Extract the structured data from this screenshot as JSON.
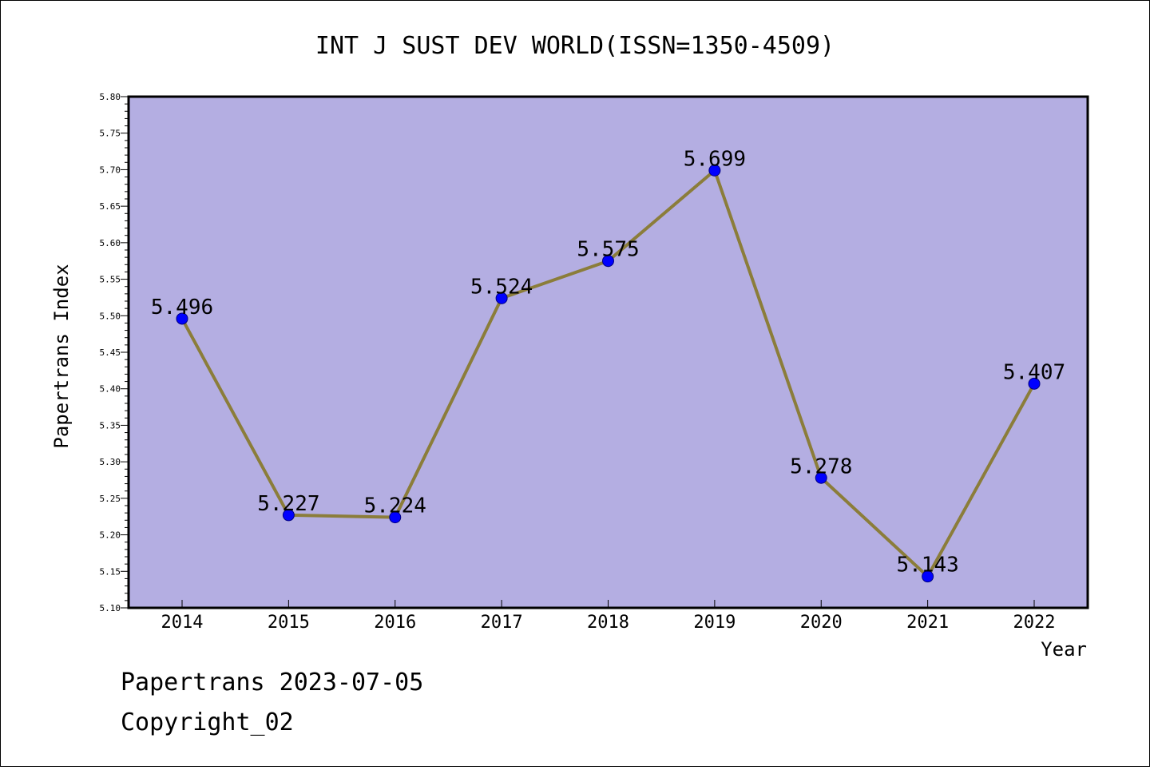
{
  "chart_data": {
    "type": "line",
    "title": "INT J SUST DEV WORLD(ISSN=1350-4509)",
    "xlabel": "Year",
    "ylabel": "Papertrans Index",
    "categories": [
      "2014",
      "2015",
      "2016",
      "2017",
      "2018",
      "2019",
      "2020",
      "2021",
      "2022"
    ],
    "series": [
      {
        "values": [
          5.496,
          5.227,
          5.224,
          5.524,
          5.575,
          5.699,
          5.278,
          5.143,
          5.407
        ]
      }
    ],
    "data_labels": [
      "5.496",
      "5.227",
      "5.224",
      "5.524",
      "5.575",
      "5.699",
      "5.278",
      "5.143",
      "5.407"
    ],
    "ylim": [
      5.1,
      5.8
    ],
    "yticks": [
      "5.10",
      "5.15",
      "5.20",
      "5.25",
      "5.30",
      "5.35",
      "5.40",
      "5.45",
      "5.50",
      "5.55",
      "5.60",
      "5.65",
      "5.70",
      "5.75",
      "5.80"
    ],
    "grid": false,
    "colors": {
      "plot_background": "#b4aee2",
      "line": "#8b7d3a",
      "marker": "#0000ff"
    }
  },
  "footer": {
    "line1": "Papertrans 2023-07-05",
    "line2": "Copyright_02"
  }
}
